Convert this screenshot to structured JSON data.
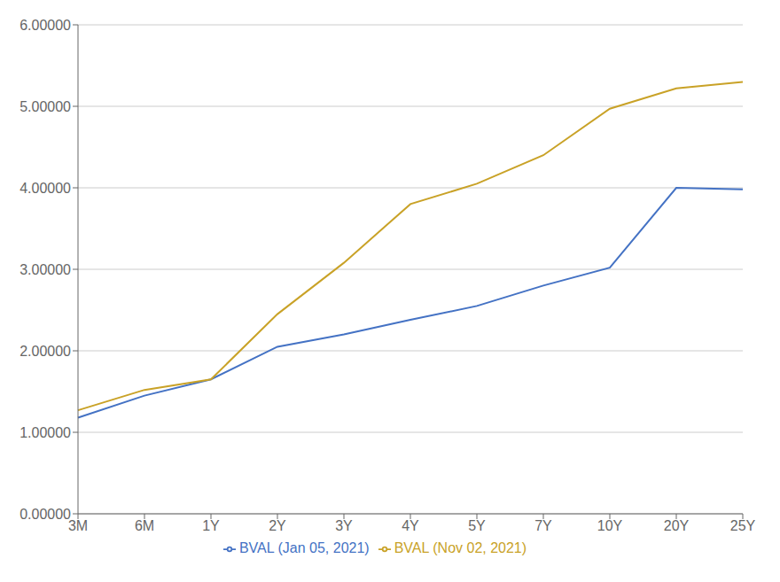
{
  "chart_data": {
    "type": "line",
    "categories": [
      "3M",
      "6M",
      "1Y",
      "2Y",
      "3Y",
      "4Y",
      "5Y",
      "7Y",
      "10Y",
      "20Y",
      "25Y"
    ],
    "series": [
      {
        "name": "BVAL (Jan 05, 2021)",
        "color": "#4472C4",
        "values": [
          1.18,
          1.45,
          1.65,
          2.05,
          2.2,
          2.38,
          2.55,
          2.8,
          3.02,
          4.0,
          3.98
        ]
      },
      {
        "name": "BVAL (Nov 02, 2021)",
        "color": "#C9A227",
        "values": [
          1.27,
          1.52,
          1.65,
          2.45,
          3.08,
          3.8,
          4.05,
          4.4,
          4.97,
          5.22,
          5.3
        ]
      }
    ],
    "ylim": [
      0.0,
      6.0
    ],
    "yticks": [
      {
        "value": 0.0,
        "label": "0.00000"
      },
      {
        "value": 1.0,
        "label": "1.00000"
      },
      {
        "value": 2.0,
        "label": "2.00000"
      },
      {
        "value": 3.0,
        "label": "3.00000"
      },
      {
        "value": 4.0,
        "label": "4.00000"
      },
      {
        "value": 5.0,
        "label": "5.00000"
      },
      {
        "value": 6.0,
        "label": "6.00000"
      }
    ],
    "grid": true,
    "legend": "bottom"
  }
}
